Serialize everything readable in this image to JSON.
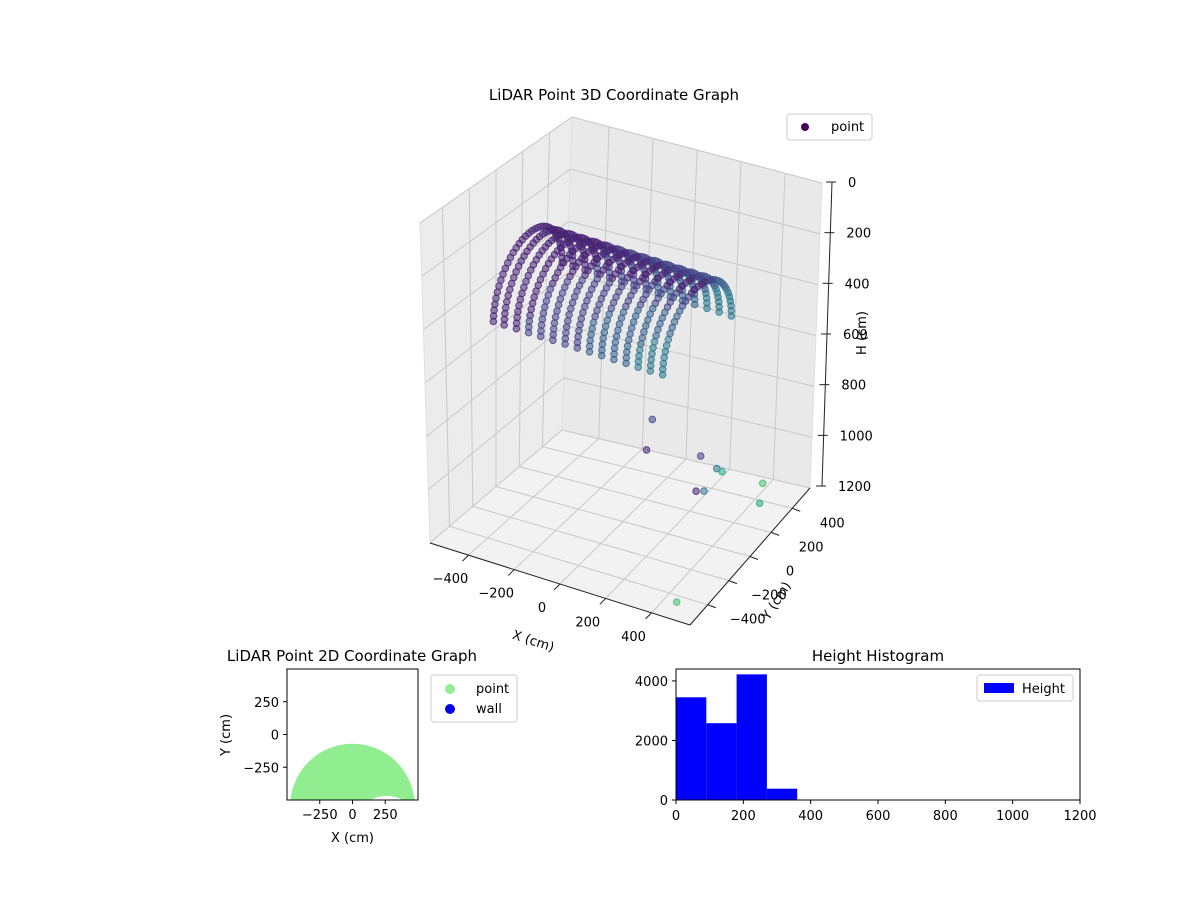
{
  "chart_data": [
    {
      "type": "scatter",
      "projection": "3d",
      "title": "LiDAR Point 3D Coordinate Graph",
      "xlabel": "X (cm)",
      "ylabel": "Y (cm)",
      "zlabel": "H (cm)",
      "xticks": [
        "−400",
        "−200",
        "0",
        "200",
        "400"
      ],
      "yticks": [
        "−400",
        "−200",
        "0",
        "200",
        "400"
      ],
      "zticks": [
        "0",
        "200",
        "400",
        "600",
        "800",
        "1000",
        "1200"
      ],
      "xlim": [
        -480,
        480
      ],
      "ylim": [
        -480,
        480
      ],
      "zlim": [
        1200,
        0
      ],
      "colormap": "viridis",
      "grid": true,
      "legend": {
        "placement": "top-right",
        "entries": [
          {
            "name": "point",
            "color": "#440154"
          }
        ]
      },
      "series": [
        {
          "name": "point",
          "ring_x": [
            -375,
            -335,
            -290,
            -245,
            -200,
            -155,
            -110,
            -65,
            -20,
            25,
            70,
            115,
            160,
            205,
            250
          ],
          "ring_radius": 250,
          "ring_h_top": 80,
          "ring_h_bottom": 430,
          "outliers": [
            {
              "x": 380,
              "y": -250,
              "h": 820
            },
            {
              "x": 330,
              "y": -120,
              "h": 760
            },
            {
              "x": 300,
              "y": 60,
              "h": 900
            },
            {
              "x": 260,
              "y": 180,
              "h": 980
            },
            {
              "x": 350,
              "y": 300,
              "h": 1050
            },
            {
              "x": 220,
              "y": -300,
              "h": 690
            },
            {
              "x": 180,
              "y": -180,
              "h": 640
            },
            {
              "x": 160,
              "y": 250,
              "h": 1120
            },
            {
              "x": 300,
              "y": 380,
              "h": 1180
            },
            {
              "x": 380,
              "y": -380,
              "h": 1190
            }
          ]
        }
      ]
    },
    {
      "type": "scatter",
      "title": "LiDAR Point 2D Coordinate Graph",
      "xlabel": "X (cm)",
      "ylabel": "Y (cm)",
      "xticks": [
        "−250",
        "0",
        "250"
      ],
      "yticks": [
        "250",
        "0",
        "−250"
      ],
      "xlim": [
        -500,
        500
      ],
      "ylim": [
        -500,
        500
      ],
      "legend": {
        "placement": "outside-right",
        "entries": [
          {
            "name": "point",
            "color": "#90ee90"
          },
          {
            "name": "wall",
            "color": "#0000e6"
          }
        ]
      },
      "series": [
        {
          "name": "point",
          "color": "#90ee90",
          "region": "arch",
          "radius": 460,
          "inner_radius": 230,
          "center_y": -350
        }
      ]
    },
    {
      "type": "bar",
      "title": "Height Histogram",
      "xticks": [
        "0",
        "200",
        "400",
        "600",
        "800",
        "1000",
        "1200"
      ],
      "yticks": [
        "0",
        "2000",
        "4000"
      ],
      "xlim": [
        0,
        1200
      ],
      "ylim": [
        0,
        4400
      ],
      "legend": {
        "placement": "top-right",
        "entries": [
          {
            "name": "Height",
            "color": "#0000ff"
          }
        ]
      },
      "series": [
        {
          "name": "Height",
          "color": "#0000ff",
          "bin_edges": [
            0,
            90,
            180,
            270,
            360
          ],
          "values": [
            3450,
            2580,
            4220,
            380
          ]
        }
      ]
    }
  ]
}
